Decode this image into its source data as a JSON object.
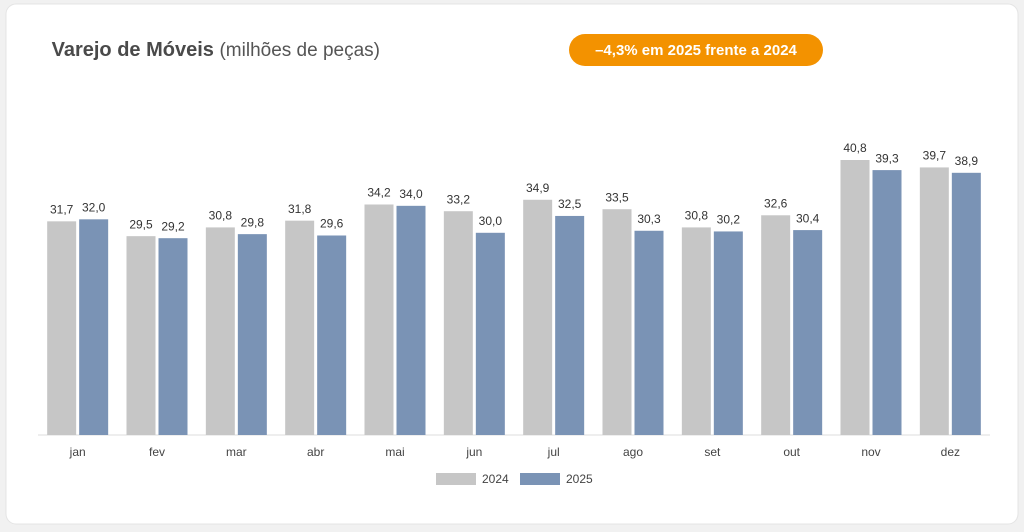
{
  "chart_data": {
    "type": "bar",
    "title": "Varejo de Móveis",
    "subtitle": "(milhões de peças)",
    "annotation": "–4,3% em 2025 frente a 2024",
    "categories": [
      "jan",
      "fev",
      "mar",
      "abr",
      "mai",
      "jun",
      "jul",
      "ago",
      "set",
      "out",
      "nov",
      "dez"
    ],
    "series": [
      {
        "name": "2024",
        "color": "#c6c6c6",
        "values": [
          31.7,
          29.5,
          30.8,
          31.8,
          34.2,
          33.2,
          34.9,
          33.5,
          30.8,
          32.6,
          40.8,
          39.7
        ],
        "value_labels": [
          "31,7",
          "29,5",
          "30,8",
          "31,8",
          "34,2",
          "33,2",
          "34,9",
          "33,5",
          "30,8",
          "32,6",
          "40,8",
          "39,7"
        ]
      },
      {
        "name": "2025",
        "color": "#7a93b5",
        "values": [
          32.0,
          29.2,
          29.8,
          29.6,
          34.0,
          30.0,
          32.5,
          30.3,
          30.2,
          30.4,
          39.3,
          38.9
        ],
        "value_labels": [
          "32,0",
          "29,2",
          "29,8",
          "29,6",
          "34,0",
          "30,0",
          "32,5",
          "30,3",
          "30,2",
          "30,4",
          "39,3",
          "38,9"
        ]
      }
    ],
    "legend": "bottom",
    "annotation_color": "#f39200"
  }
}
